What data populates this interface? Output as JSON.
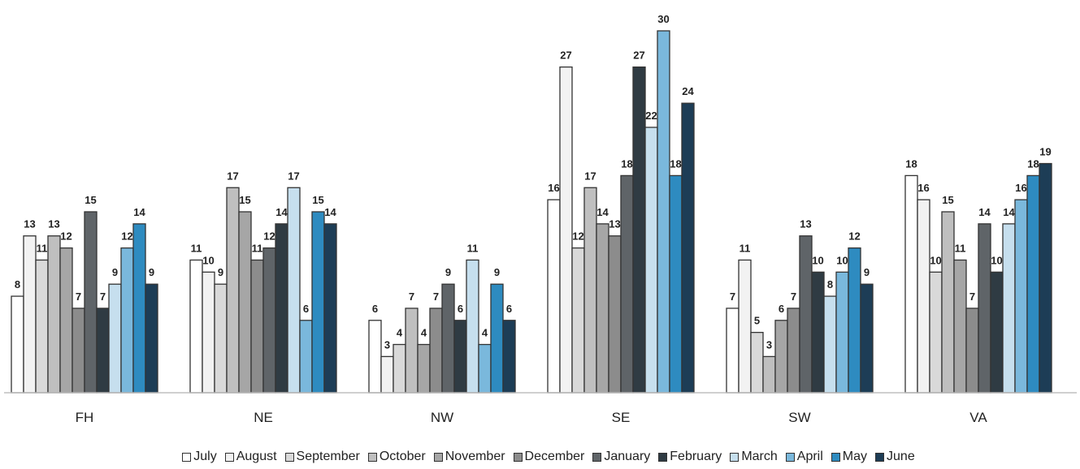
{
  "chart_data": {
    "type": "bar",
    "title": "",
    "xlabel": "",
    "ylabel": "",
    "categories": [
      "FH",
      "NE",
      "NW",
      "SE",
      "SW",
      "VA"
    ],
    "ylim": [
      0,
      30
    ],
    "grid": false,
    "legend_position": "bottom",
    "series": [
      {
        "name": "July",
        "color": "#ffffff",
        "values": [
          8,
          11,
          6,
          16,
          7,
          18
        ]
      },
      {
        "name": "August",
        "color": "#f2f2f2",
        "values": [
          13,
          10,
          3,
          27,
          11,
          16
        ]
      },
      {
        "name": "September",
        "color": "#d9d9d9",
        "values": [
          11,
          9,
          4,
          12,
          5,
          10
        ]
      },
      {
        "name": "October",
        "color": "#bfbfbf",
        "values": [
          13,
          17,
          7,
          17,
          3,
          15
        ]
      },
      {
        "name": "November",
        "color": "#a6a6a6",
        "values": [
          12,
          15,
          4,
          14,
          6,
          11
        ]
      },
      {
        "name": "December",
        "color": "#8c8c8c",
        "values": [
          7,
          11,
          7,
          13,
          7,
          7
        ]
      },
      {
        "name": "January",
        "color": "#5f6468",
        "values": [
          15,
          12,
          9,
          18,
          13,
          14
        ]
      },
      {
        "name": "February",
        "color": "#2f3b43",
        "values": [
          7,
          14,
          6,
          27,
          10,
          10
        ]
      },
      {
        "name": "March",
        "color": "#c6dfee",
        "values": [
          9,
          17,
          11,
          22,
          8,
          14
        ]
      },
      {
        "name": "April",
        "color": "#7ab8dc",
        "values": [
          12,
          6,
          4,
          30,
          10,
          16
        ]
      },
      {
        "name": "May",
        "color": "#2e8bc0",
        "values": [
          14,
          15,
          9,
          18,
          12,
          18
        ]
      },
      {
        "name": "June",
        "color": "#1d3d56",
        "values": [
          9,
          14,
          6,
          24,
          9,
          19
        ]
      }
    ]
  }
}
